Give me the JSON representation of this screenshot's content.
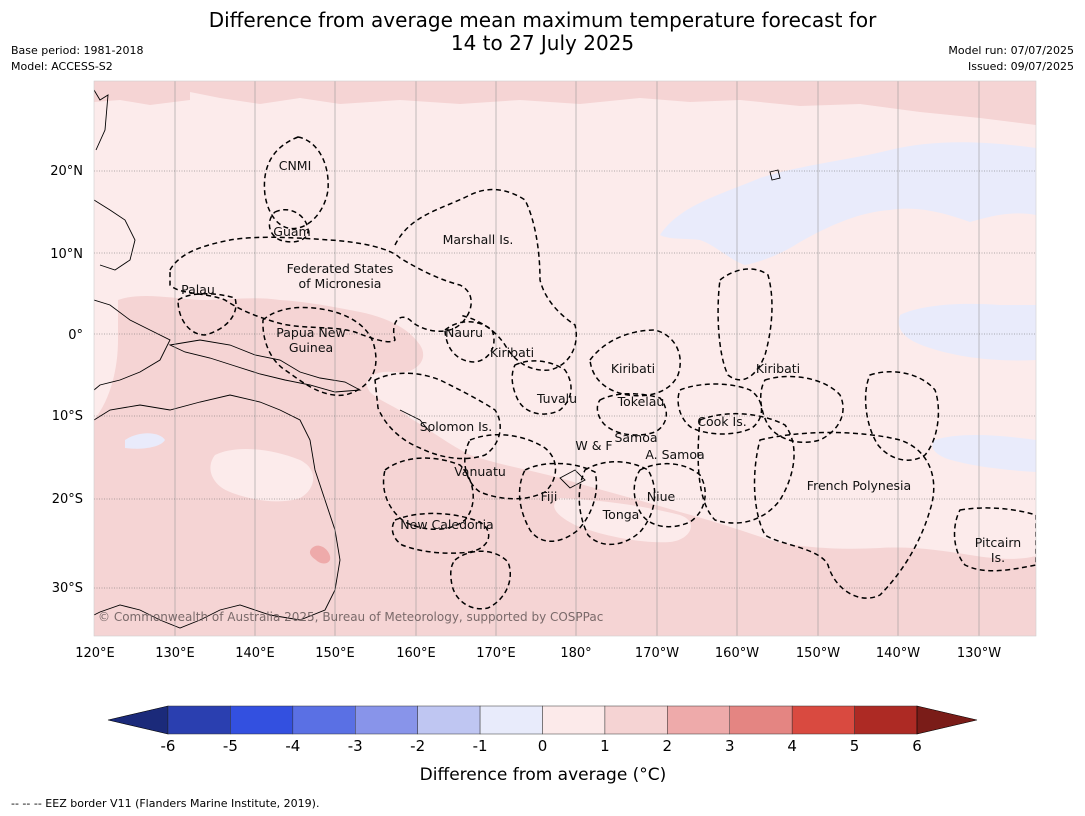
{
  "title_line1": "Difference from average mean maximum temperature forecast for",
  "title_line2": "14 to 27 July 2025",
  "base_period": "Base period: 1981-2018",
  "model": "Model: ACCESS-S2",
  "model_run": "Model run: 07/07/2025",
  "issued": "Issued: 09/07/2025",
  "copyright": "© Commonwealth of Australia 2025, Bureau of Meteorology, supported by COSPPac",
  "footnote": "-- -- -- EEZ border V11 (Flanders Marine Institute, 2019).",
  "lon_labels": [
    "120°E",
    "130°E",
    "140°E",
    "150°E",
    "160°E",
    "170°E",
    "180°",
    "170°W",
    "160°W",
    "150°W",
    "140°W",
    "130°W"
  ],
  "lat_labels": [
    "20°N",
    "10°N",
    "0°",
    "10°S",
    "20°S",
    "30°S"
  ],
  "regions": {
    "cnmi": "CNMI",
    "guam": "Guam",
    "marshall": "Marshall Is.",
    "fsm1": "Federated States",
    "fsm2": "of Micronesia",
    "palau": "Palau",
    "png1": "Papua New",
    "png2": "Guinea",
    "nauru": "Nauru",
    "kiribati_w": "Kiribati",
    "kiribati_c": "Kiribati",
    "kiribati_e": "Kiribati",
    "tuvalu": "Tuvalu",
    "tokelau": "Tokelau",
    "solomon": "Solomon Is.",
    "wf": "W & F",
    "samoa": "Samoa",
    "asamoa": "A. Samoa",
    "cook": "Cook Is.",
    "vanuatu": "Vanuatu",
    "fiji": "Fiji",
    "niue": "Niue",
    "tonga": "Tonga",
    "newcal": "New Caledonia",
    "frpoly": "French Polynesia",
    "pitcairn1": "Pitcairn",
    "pitcairn2": "Is."
  },
  "colorbar": {
    "title": "Difference from average (°C)",
    "ticks": [
      "-6",
      "-5",
      "-4",
      "-3",
      "-2",
      "-1",
      "0",
      "1",
      "2",
      "3",
      "4",
      "5",
      "6"
    ],
    "colors": [
      "#1b2a7a",
      "#2a3fb0",
      "#3350e0",
      "#5a70e4",
      "#8894ea",
      "#bfc6f2",
      "#e8ebfb",
      "#fceaea",
      "#f5d3d3",
      "#eeaaaa",
      "#e48582",
      "#d94a40",
      "#ad2a24",
      "#7a1c18"
    ]
  }
}
